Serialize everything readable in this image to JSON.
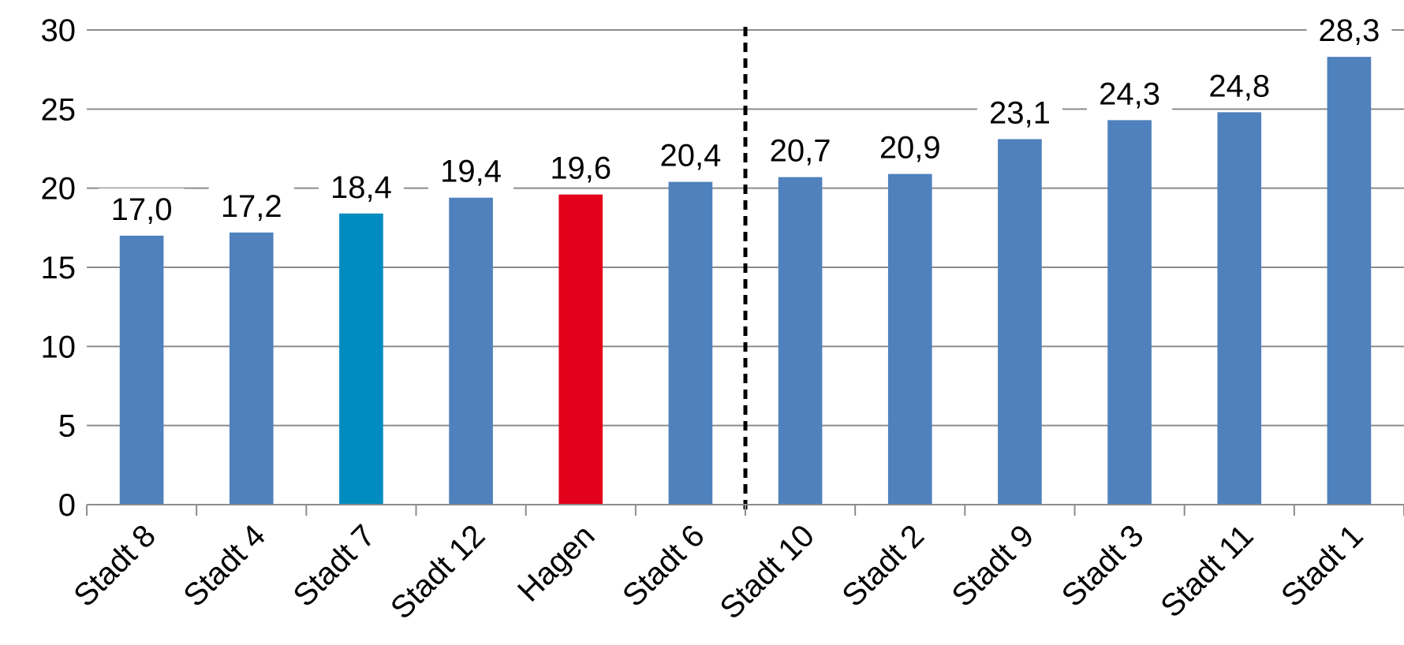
{
  "chart_data": {
    "type": "bar",
    "categories": [
      "Stadt 8",
      "Stadt 4",
      "Stadt 7",
      "Stadt 12",
      "Hagen",
      "Stadt 6",
      "Stadt 10",
      "Stadt 2",
      "Stadt 9",
      "Stadt 3",
      "Stadt 11",
      "Stadt 1"
    ],
    "values": [
      17.0,
      17.2,
      18.4,
      19.4,
      19.6,
      20.4,
      20.7,
      20.9,
      23.1,
      24.3,
      24.8,
      28.3
    ],
    "data_labels": [
      "17,0",
      "17,2",
      "18,4",
      "19,4",
      "19,6",
      "20,4",
      "20,7",
      "20,9",
      "23,1",
      "24,3",
      "24,8",
      "28,3"
    ],
    "bar_colors": [
      "#4f81bd",
      "#4f81bd",
      "#008cc1",
      "#4f81bd",
      "#e2001a",
      "#4f81bd",
      "#4f81bd",
      "#4f81bd",
      "#4f81bd",
      "#4f81bd",
      "#4f81bd",
      "#4f81bd"
    ],
    "yticks": [
      0,
      5,
      10,
      15,
      20,
      25,
      30
    ],
    "ylim": [
      0,
      30
    ],
    "grid": true,
    "divider_after_category": "Stadt 6",
    "colors": {
      "grid": "#8c8c8c",
      "axis": "#8c8c8c",
      "divider": "#000000",
      "text": "#000000"
    }
  }
}
